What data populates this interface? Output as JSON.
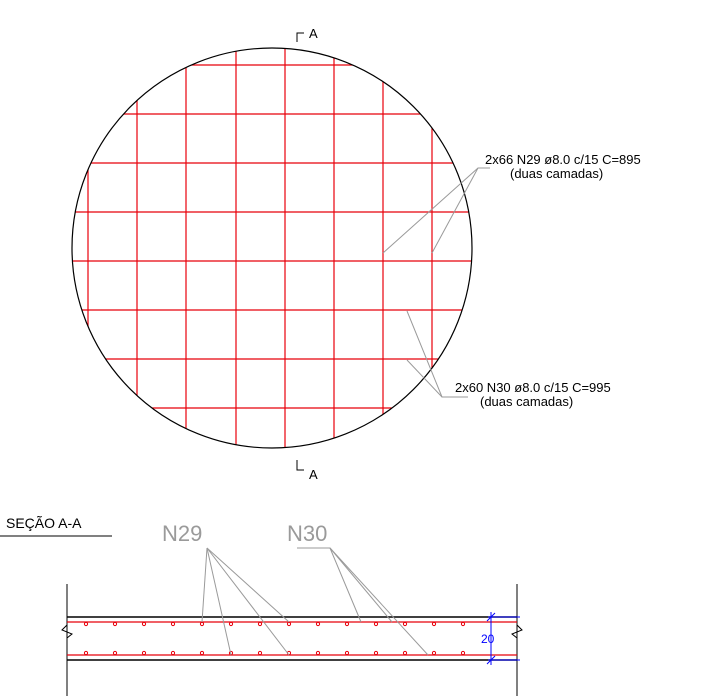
{
  "plan": {
    "section_marks": [
      "A",
      "A"
    ],
    "callout_n29": {
      "line1": "2x66 N29 ø8.0 c/15 C=895",
      "line2": "(duas camadas)"
    },
    "callout_n30": {
      "line1": "2x60 N30 ø8.0 c/15 C=995",
      "line2": "(duas camadas)"
    }
  },
  "section": {
    "title": "SEÇÃO A-A",
    "label_n29": "N29",
    "label_n30": "N30",
    "thickness_dimension": "20"
  },
  "colors": {
    "rebar": "#e8000b",
    "outline": "#000000",
    "leader": "#9a9a9a",
    "dimension": "#0000ff",
    "label_grey": "#9a9a9a"
  }
}
